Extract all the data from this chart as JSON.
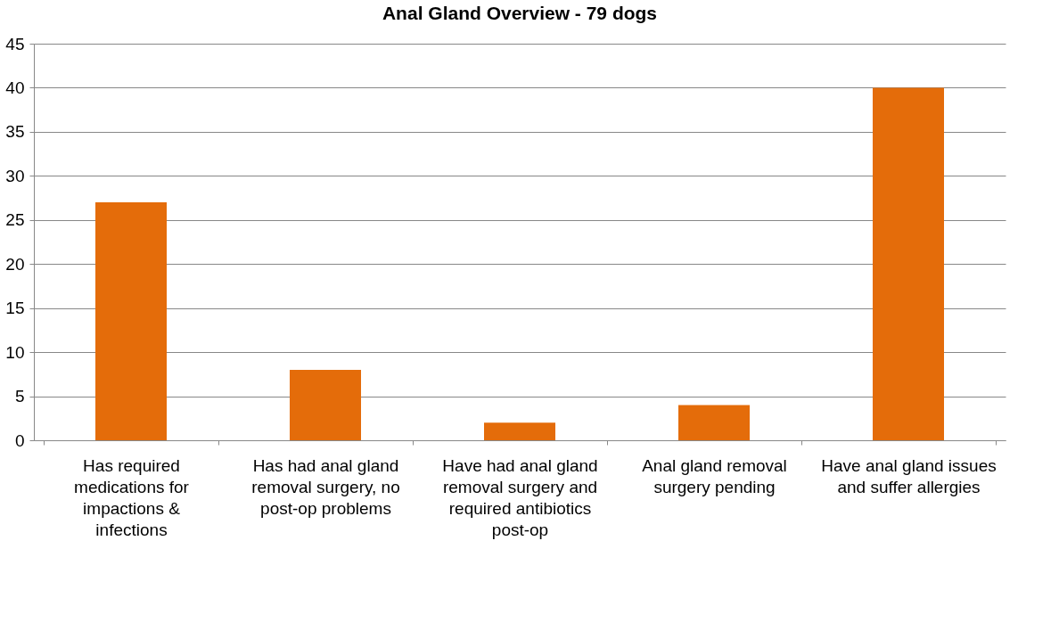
{
  "chart_data": {
    "type": "bar",
    "title": "Anal Gland Overview - 79 dogs",
    "categories": [
      "Has required medications for impactions & infections",
      "Has had anal gland removal surgery, no post-op problems",
      "Have had anal gland removal surgery and required antibiotics post-op",
      "Anal gland removal surgery pending",
      "Have anal gland issues and suffer allergies"
    ],
    "values": [
      27,
      8,
      2,
      4,
      40
    ],
    "color": "#e46c0a",
    "ylim": [
      0,
      45
    ],
    "yticks": [
      0,
      5,
      10,
      15,
      20,
      25,
      30,
      35,
      40,
      45
    ],
    "grid": "y"
  }
}
